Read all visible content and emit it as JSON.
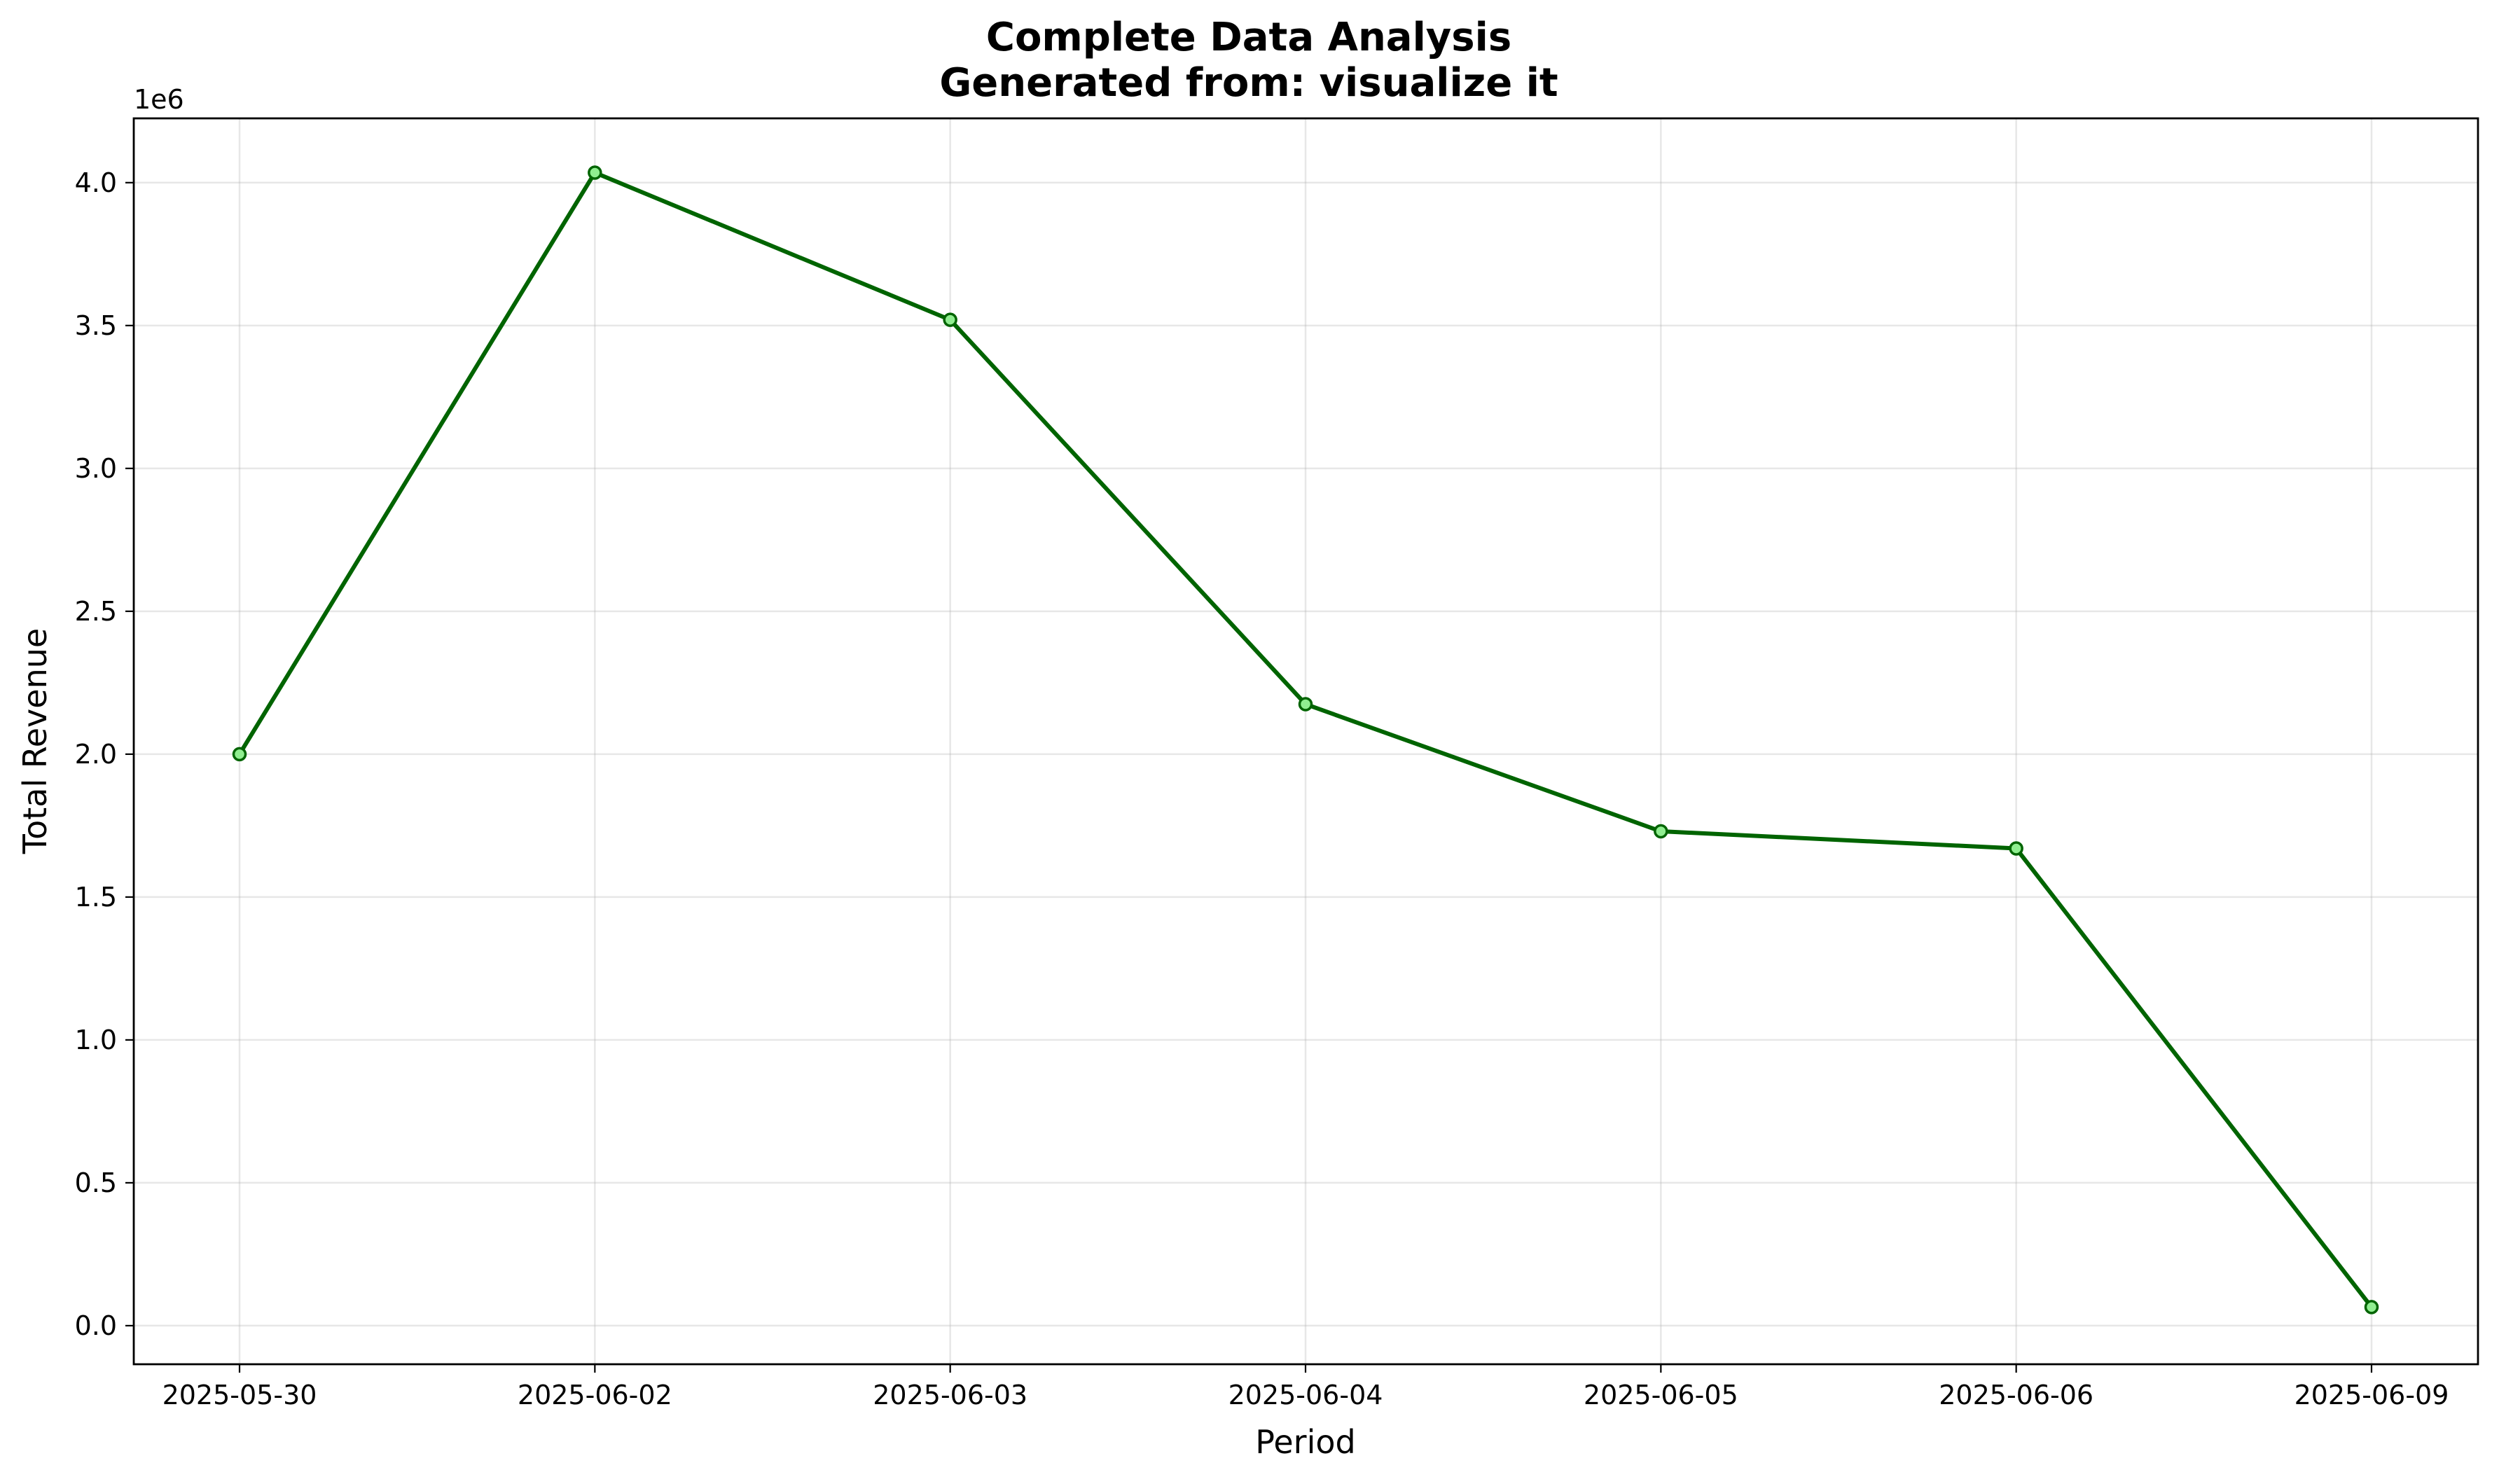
{
  "chart_data": {
    "type": "line",
    "title": "Complete Data Analysis",
    "subtitle": "Generated from: visualize it",
    "xlabel": "Period",
    "ylabel": "Total Revenue",
    "y_offset_label": "1e6",
    "categories": [
      "2025-05-30",
      "2025-06-02",
      "2025-06-03",
      "2025-06-04",
      "2025-06-05",
      "2025-06-06",
      "2025-06-09"
    ],
    "series": [
      {
        "values": [
          2000000,
          4035000,
          3520000,
          2175000,
          1730000,
          1670000,
          65000
        ]
      }
    ],
    "ylim": [
      -135000,
      4225000
    ],
    "yticks": [
      0,
      500000,
      1000000,
      1500000,
      2000000,
      2500000,
      3000000,
      3500000,
      4000000
    ],
    "ytick_labels": [
      "0.0",
      "0.5",
      "1.0",
      "1.5",
      "2.0",
      "2.5",
      "3.0",
      "3.5",
      "4.0"
    ],
    "grid": true,
    "line_color": "#006400",
    "marker_face_color": "#90ee90",
    "marker_edge_color": "#006400"
  }
}
